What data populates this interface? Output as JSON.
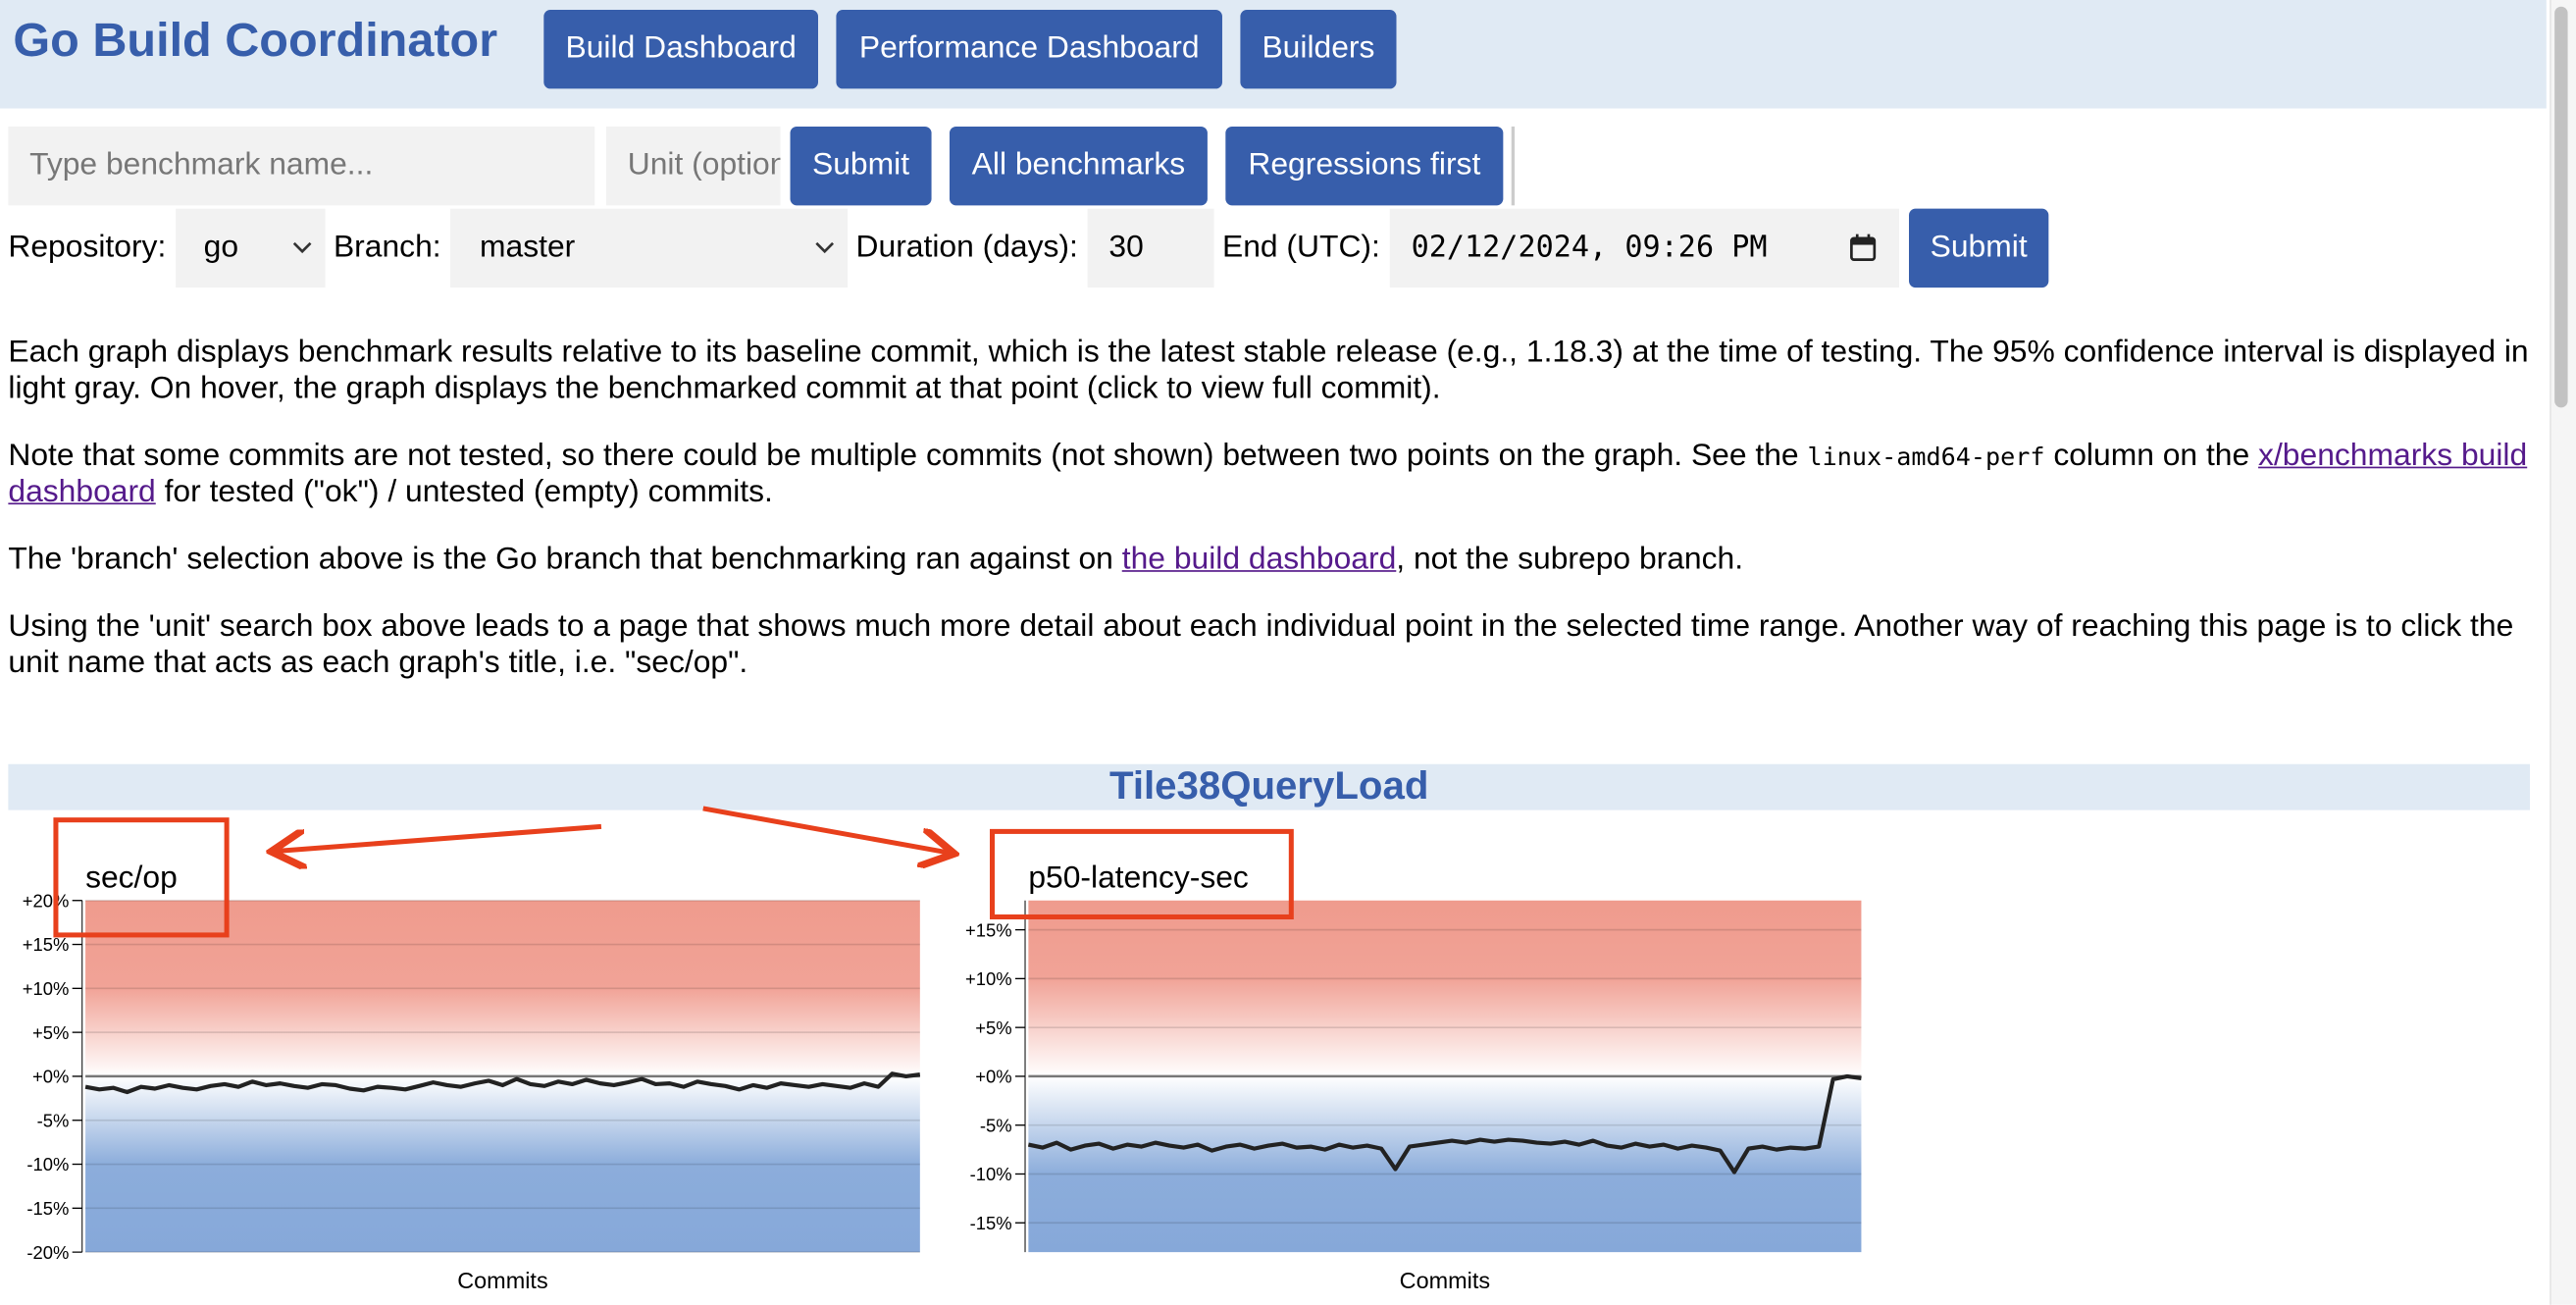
{
  "header": {
    "title": "Go Build Coordinator",
    "nav": [
      "Build Dashboard",
      "Performance Dashboard",
      "Builders"
    ]
  },
  "search": {
    "benchmark_placeholder": "Type benchmark name...",
    "unit_placeholder": "Unit (optional)",
    "submit": "Submit",
    "all_benchmarks": "All benchmarks",
    "regressions_first": "Regressions first"
  },
  "filters": {
    "repository_label": "Repository:",
    "repository": "go",
    "branch_label": "Branch:",
    "branch": "master",
    "duration_label": "Duration (days):",
    "duration": "30",
    "end_label": "End (UTC):",
    "end": "02/12/2024, 09:26 PM",
    "submit": "Submit"
  },
  "paragraphs": [
    {
      "text": "Each graph displays benchmark results relative to its baseline commit, which is the latest stable release (e.g., 1.18.3) at the time of testing. The 95% confidence interval is displayed in light gray. On hover, the graph displays the benchmarked commit at that point (click to view full commit)."
    },
    {
      "before": "Note that some commits are not tested, so there could be multiple commits (not shown) between two points on the graph. See the ",
      "code": "linux-amd64-perf",
      "middle": " column on the ",
      "link": "x/benchmarks build dashboard",
      "after": " for tested (\"ok\") / untested (empty) commits."
    },
    {
      "before": "The 'branch' selection above is the Go branch that benchmarking ran against on ",
      "link": "the build dashboard",
      "after": ", not the subrepo branch."
    },
    {
      "text": "Using the 'unit' search box above leads to a page that shows much more detail about each individual point in the selected time range. Another way of reaching this page is to click the unit name that acts as each graph's title, i.e. \"sec/op\"."
    }
  ],
  "benchmark": {
    "title": "Tile38QueryLoad"
  },
  "chart_data": [
    {
      "type": "line",
      "title": "sec/op",
      "x_label": "Commits",
      "color": "#222222",
      "ylim": [
        -20,
        20
      ],
      "yticks": [
        {
          "value": 20,
          "label": "+20%"
        },
        {
          "value": 15,
          "label": "+15%"
        },
        {
          "value": 10,
          "label": "+10%"
        },
        {
          "value": 5,
          "label": "+5%"
        },
        {
          "value": 0,
          "label": "+0%"
        },
        {
          "value": -5,
          "label": "-5%"
        },
        {
          "value": -10,
          "label": "-10%"
        },
        {
          "value": -15,
          "label": "-15%"
        },
        {
          "value": -20,
          "label": "-20%"
        }
      ],
      "values": [
        -1.2,
        -1.5,
        -1.3,
        -1.8,
        -1.2,
        -1.4,
        -1.0,
        -1.3,
        -1.5,
        -1.1,
        -0.9,
        -1.2,
        -0.6,
        -1.0,
        -0.8,
        -1.1,
        -1.3,
        -0.9,
        -1.0,
        -1.4,
        -1.6,
        -1.2,
        -1.3,
        -1.5,
        -1.1,
        -0.7,
        -1.0,
        -1.2,
        -0.8,
        -0.5,
        -1.0,
        -0.3,
        -0.9,
        -1.1,
        -0.6,
        -0.9,
        -0.4,
        -0.8,
        -1.0,
        -0.7,
        -0.3,
        -0.9,
        -0.8,
        -1.2,
        -0.6,
        -0.9,
        -1.1,
        -1.5,
        -1.0,
        -1.3,
        -0.8,
        -1.0,
        -1.2,
        -0.9,
        -1.1,
        -1.3,
        -0.8,
        -1.2,
        0.3,
        0.0,
        0.2
      ]
    },
    {
      "type": "line",
      "title": "p50-latency-sec",
      "x_label": "Commits",
      "color": "#222222",
      "ylim": [
        -18,
        18
      ],
      "yticks": [
        {
          "value": 15,
          "label": "+15%"
        },
        {
          "value": 10,
          "label": "+10%"
        },
        {
          "value": 5,
          "label": "+5%"
        },
        {
          "value": 0,
          "label": "+0%"
        },
        {
          "value": -5,
          "label": "-5%"
        },
        {
          "value": -10,
          "label": "-10%"
        },
        {
          "value": -15,
          "label": "-15%"
        }
      ],
      "values": [
        -7.0,
        -7.3,
        -6.8,
        -7.5,
        -7.1,
        -6.9,
        -7.4,
        -7.0,
        -7.2,
        -6.8,
        -7.1,
        -7.3,
        -7.0,
        -7.6,
        -7.2,
        -7.0,
        -7.4,
        -7.1,
        -6.9,
        -7.3,
        -7.2,
        -7.5,
        -7.0,
        -7.3,
        -7.1,
        -7.4,
        -9.5,
        -7.2,
        -7.0,
        -6.8,
        -6.6,
        -6.8,
        -6.5,
        -6.7,
        -6.5,
        -6.6,
        -6.8,
        -6.9,
        -6.7,
        -7.0,
        -6.6,
        -7.1,
        -7.3,
        -6.9,
        -7.2,
        -7.0,
        -7.4,
        -7.1,
        -7.3,
        -7.6,
        -9.8,
        -7.4,
        -7.2,
        -7.5,
        -7.3,
        -7.4,
        -7.2,
        -0.3,
        0.0,
        -0.2
      ]
    }
  ]
}
